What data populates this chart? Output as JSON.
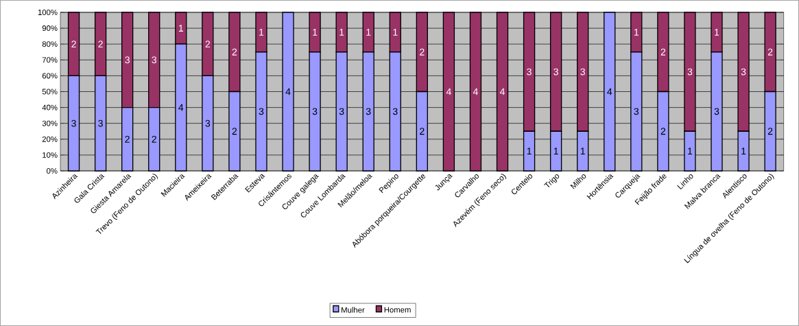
{
  "chart_data": {
    "type": "bar",
    "stacked": true,
    "grid": "y",
    "legend": "bottom",
    "categories": [
      "Azinheira",
      "Gala Crista",
      "Giesta Amarela",
      "Trevo (Feno de Outono)",
      "Macieira",
      "Ameixeira",
      "Beterraba",
      "Esteva",
      "Crisântemos",
      "Couve galega",
      "Couve Lombarda",
      "Melão/meloa",
      "Pepino",
      "Abóbora porqueira/Courgette",
      "Junça",
      "Carvalho",
      "Azevém (Feno seco)",
      "Centeio",
      "Trigo",
      "Milho",
      "Hortênsia",
      "Carqueja",
      "Feijão frade",
      "Linho",
      "Malva branca",
      "Alentisco",
      "Língua de ovelha (Feno de Outono)"
    ],
    "ylim": [
      0,
      100
    ],
    "yticks": [
      {
        "value": 0,
        "label": "0%"
      },
      {
        "value": 10,
        "label": "10%"
      },
      {
        "value": 20,
        "label": "20%"
      },
      {
        "value": 30,
        "label": "30%"
      },
      {
        "value": 40,
        "label": "40%"
      },
      {
        "value": 50,
        "label": "50%"
      },
      {
        "value": 60,
        "label": "60%"
      },
      {
        "value": 70,
        "label": "70%"
      },
      {
        "value": 80,
        "label": "80%"
      },
      {
        "value": 90,
        "label": "90%"
      },
      {
        "value": 100,
        "label": "100%"
      }
    ],
    "series": [
      {
        "name": "Mulher",
        "color": "#9999ff",
        "values": [
          60,
          60,
          40,
          40,
          80,
          60,
          50,
          75,
          100,
          75,
          75,
          75,
          75,
          50,
          0,
          0,
          0,
          25,
          25,
          25,
          100,
          75,
          50,
          25,
          75,
          25,
          50
        ]
      },
      {
        "name": "Homem",
        "color": "#993366",
        "values": [
          40,
          40,
          60,
          60,
          20,
          40,
          50,
          25,
          0,
          25,
          25,
          25,
          25,
          50,
          100,
          100,
          100,
          75,
          75,
          75,
          0,
          25,
          50,
          75,
          25,
          75,
          50
        ]
      }
    ],
    "annotations": [
      "3",
      "2",
      "3",
      "2",
      "2",
      "3",
      "2",
      "3",
      "4",
      "1",
      "3",
      "2",
      "2",
      "2",
      "3",
      "1",
      "4",
      "3",
      "1",
      "3",
      "1",
      "3",
      "1",
      "3",
      "1",
      "2",
      "2",
      "4",
      "4",
      "4",
      "1",
      "3",
      "1",
      "3",
      "1",
      "3",
      "4",
      "3",
      "1",
      "2",
      "2",
      "1",
      "3",
      "3",
      "1",
      "1",
      "3",
      "2",
      "2"
    ]
  }
}
